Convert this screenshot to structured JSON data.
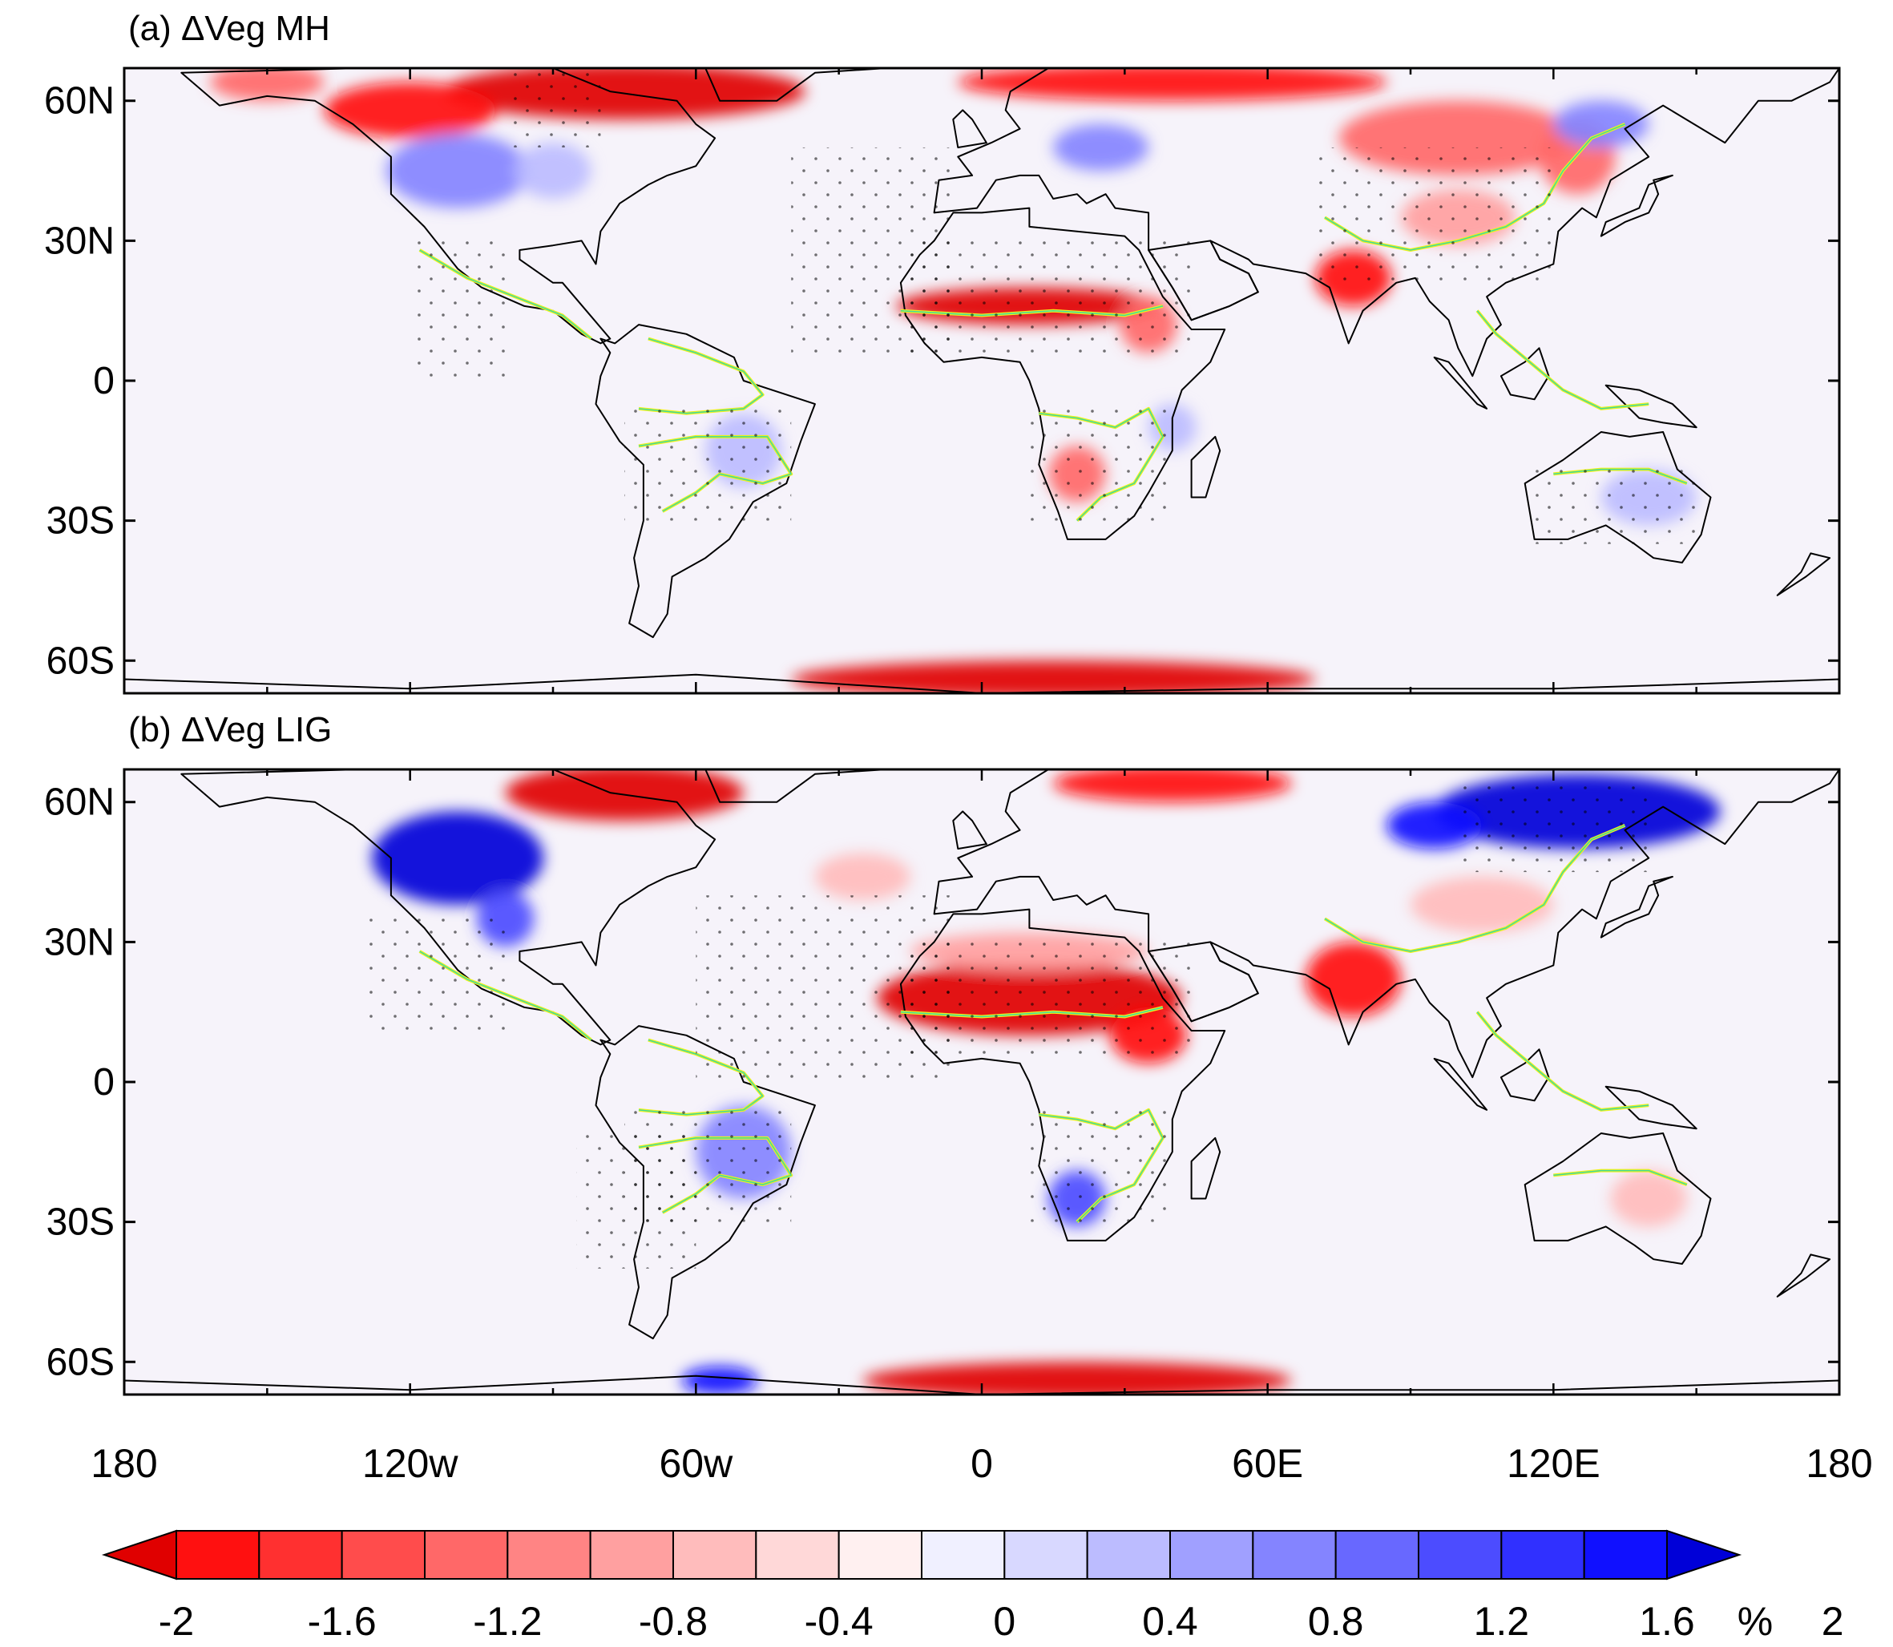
{
  "panels": [
    {
      "title": "(a) ΔVeg MH",
      "lat_ticks": [
        "60N",
        "30N",
        "0",
        "30S",
        "60S"
      ],
      "blobs": [
        {
          "lon": -75,
          "lat": 62,
          "rx": 38,
          "ry": 6,
          "v": -2.0
        },
        {
          "lon": -120,
          "lat": 58,
          "rx": 18,
          "ry": 6,
          "v": -1.6
        },
        {
          "lon": -150,
          "lat": 64,
          "rx": 12,
          "ry": 4,
          "v": -1.2
        },
        {
          "lon": 40,
          "lat": 64,
          "rx": 45,
          "ry": 4,
          "v": -1.6
        },
        {
          "lon": 10,
          "lat": 16,
          "rx": 28,
          "ry": 4,
          "v": -2.0
        },
        {
          "lon": 35,
          "lat": 12,
          "rx": 6,
          "ry": 6,
          "v": -1.2
        },
        {
          "lon": 78,
          "lat": 22,
          "rx": 8,
          "ry": 6,
          "v": -1.6
        },
        {
          "lon": 100,
          "lat": 52,
          "rx": 25,
          "ry": 8,
          "v": -1.2
        },
        {
          "lon": 125,
          "lat": 48,
          "rx": 8,
          "ry": 8,
          "v": -1.2
        },
        {
          "lon": 100,
          "lat": 35,
          "rx": 12,
          "ry": 6,
          "v": -0.8
        },
        {
          "lon": 20,
          "lat": -20,
          "rx": 6,
          "ry": 6,
          "v": -1.2
        },
        {
          "lon": 15,
          "lat": -64,
          "rx": 55,
          "ry": 4,
          "v": -2.0
        },
        {
          "lon": -110,
          "lat": 45,
          "rx": 15,
          "ry": 8,
          "v": 0.8
        },
        {
          "lon": -90,
          "lat": 45,
          "rx": 8,
          "ry": 6,
          "v": 0.6
        },
        {
          "lon": 25,
          "lat": 50,
          "rx": 10,
          "ry": 5,
          "v": 0.8
        },
        {
          "lon": 130,
          "lat": 55,
          "rx": 10,
          "ry": 5,
          "v": 0.8
        },
        {
          "lon": -50,
          "lat": -15,
          "rx": 8,
          "ry": 8,
          "v": 0.4
        },
        {
          "lon": 140,
          "lat": -25,
          "rx": 10,
          "ry": 6,
          "v": 0.4
        },
        {
          "lon": 40,
          "lat": -10,
          "rx": 5,
          "ry": 5,
          "v": 0.4
        }
      ]
    },
    {
      "title": "(b) ΔVeg LIG",
      "lat_ticks": [
        "60N",
        "30N",
        "0",
        "30S",
        "60S"
      ],
      "blobs": [
        {
          "lon": -110,
          "lat": 48,
          "rx": 18,
          "ry": 10,
          "v": 2.0
        },
        {
          "lon": -100,
          "lat": 35,
          "rx": 6,
          "ry": 6,
          "v": 1.2
        },
        {
          "lon": -75,
          "lat": 62,
          "rx": 25,
          "ry": 6,
          "v": -2.0
        },
        {
          "lon": 40,
          "lat": 64,
          "rx": 25,
          "ry": 4,
          "v": -1.6
        },
        {
          "lon": 10,
          "lat": 18,
          "rx": 32,
          "ry": 8,
          "v": -2.0
        },
        {
          "lon": 35,
          "lat": 10,
          "rx": 8,
          "ry": 6,
          "v": -1.6
        },
        {
          "lon": 10,
          "lat": 28,
          "rx": 25,
          "ry": 4,
          "v": -0.8
        },
        {
          "lon": 78,
          "lat": 22,
          "rx": 10,
          "ry": 8,
          "v": -1.6
        },
        {
          "lon": 125,
          "lat": 58,
          "rx": 30,
          "ry": 8,
          "v": 2.0
        },
        {
          "lon": 95,
          "lat": 55,
          "rx": 10,
          "ry": 5,
          "v": 1.6
        },
        {
          "lon": 105,
          "lat": 38,
          "rx": 15,
          "ry": 6,
          "v": -0.6
        },
        {
          "lon": 20,
          "lat": -25,
          "rx": 6,
          "ry": 6,
          "v": 1.2
        },
        {
          "lon": -50,
          "lat": -15,
          "rx": 10,
          "ry": 10,
          "v": 0.8
        },
        {
          "lon": 20,
          "lat": -64,
          "rx": 45,
          "ry": 4,
          "v": -2.0
        },
        {
          "lon": -55,
          "lat": -64,
          "rx": 8,
          "ry": 3,
          "v": 1.6
        },
        {
          "lon": 140,
          "lat": -25,
          "rx": 8,
          "ry": 6,
          "v": -0.4
        },
        {
          "lon": -25,
          "lat": 44,
          "rx": 10,
          "ry": 5,
          "v": -0.6
        }
      ]
    }
  ],
  "lon_ticks": [
    "180",
    "120w",
    "60w",
    "0",
    "60E",
    "120E",
    "180"
  ],
  "colorbar": {
    "labels": [
      "-2",
      "-1.6",
      "-1.2",
      "-0.8",
      "-0.4",
      "0",
      "0.4",
      "0.8",
      "1.2",
      "1.6",
      "2"
    ],
    "unit": "%",
    "colors": [
      "#ff1010",
      "#ff3030",
      "#ff4c4c",
      "#ff6868",
      "#ff8484",
      "#ffa0a0",
      "#ffbcbc",
      "#ffd8d8",
      "#fff0f0",
      "#f0f0ff",
      "#d8d8ff",
      "#bcbcff",
      "#a0a0ff",
      "#8484ff",
      "#6868ff",
      "#4c4cff",
      "#3030ff",
      "#1010ff"
    ],
    "under_color": "#e00000",
    "over_color": "#0000d8"
  }
}
